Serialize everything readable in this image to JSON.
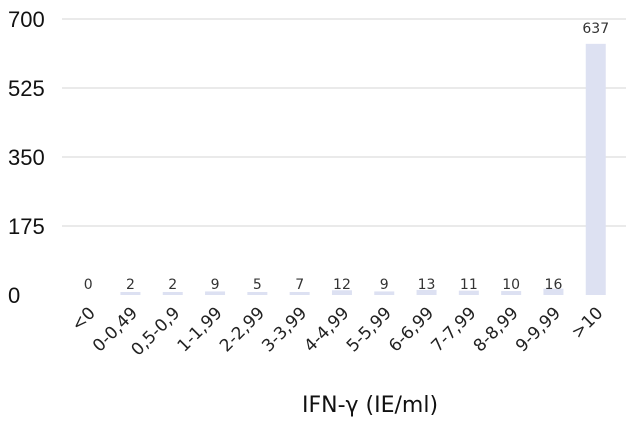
{
  "chart_data": {
    "type": "bar",
    "title": "",
    "xlabel": "IFN-γ (IE/ml)",
    "ylabel": "",
    "categories": [
      "<0",
      "0-0,49",
      "0,5-0,9",
      "1-1,99",
      "2-2,99",
      "3-3,99",
      "4-4,99",
      "5-5,99",
      "6-6,99",
      "7-7,99",
      "8-8,99",
      "9-9,99",
      ">10"
    ],
    "values": [
      0,
      2,
      2,
      9,
      5,
      7,
      12,
      9,
      13,
      11,
      10,
      16,
      637
    ],
    "data_labels": [
      "0",
      "2",
      "2",
      "9",
      "5",
      "7",
      "12",
      "9",
      "13",
      "11",
      "10",
      "16",
      "637"
    ],
    "ylim": [
      0,
      700
    ],
    "yticks": [
      0,
      175,
      350,
      525,
      700
    ],
    "ytick_labels": [
      "0",
      "175",
      "350",
      "525",
      "700"
    ],
    "grid": true,
    "bar_color": "#dde1f2"
  }
}
